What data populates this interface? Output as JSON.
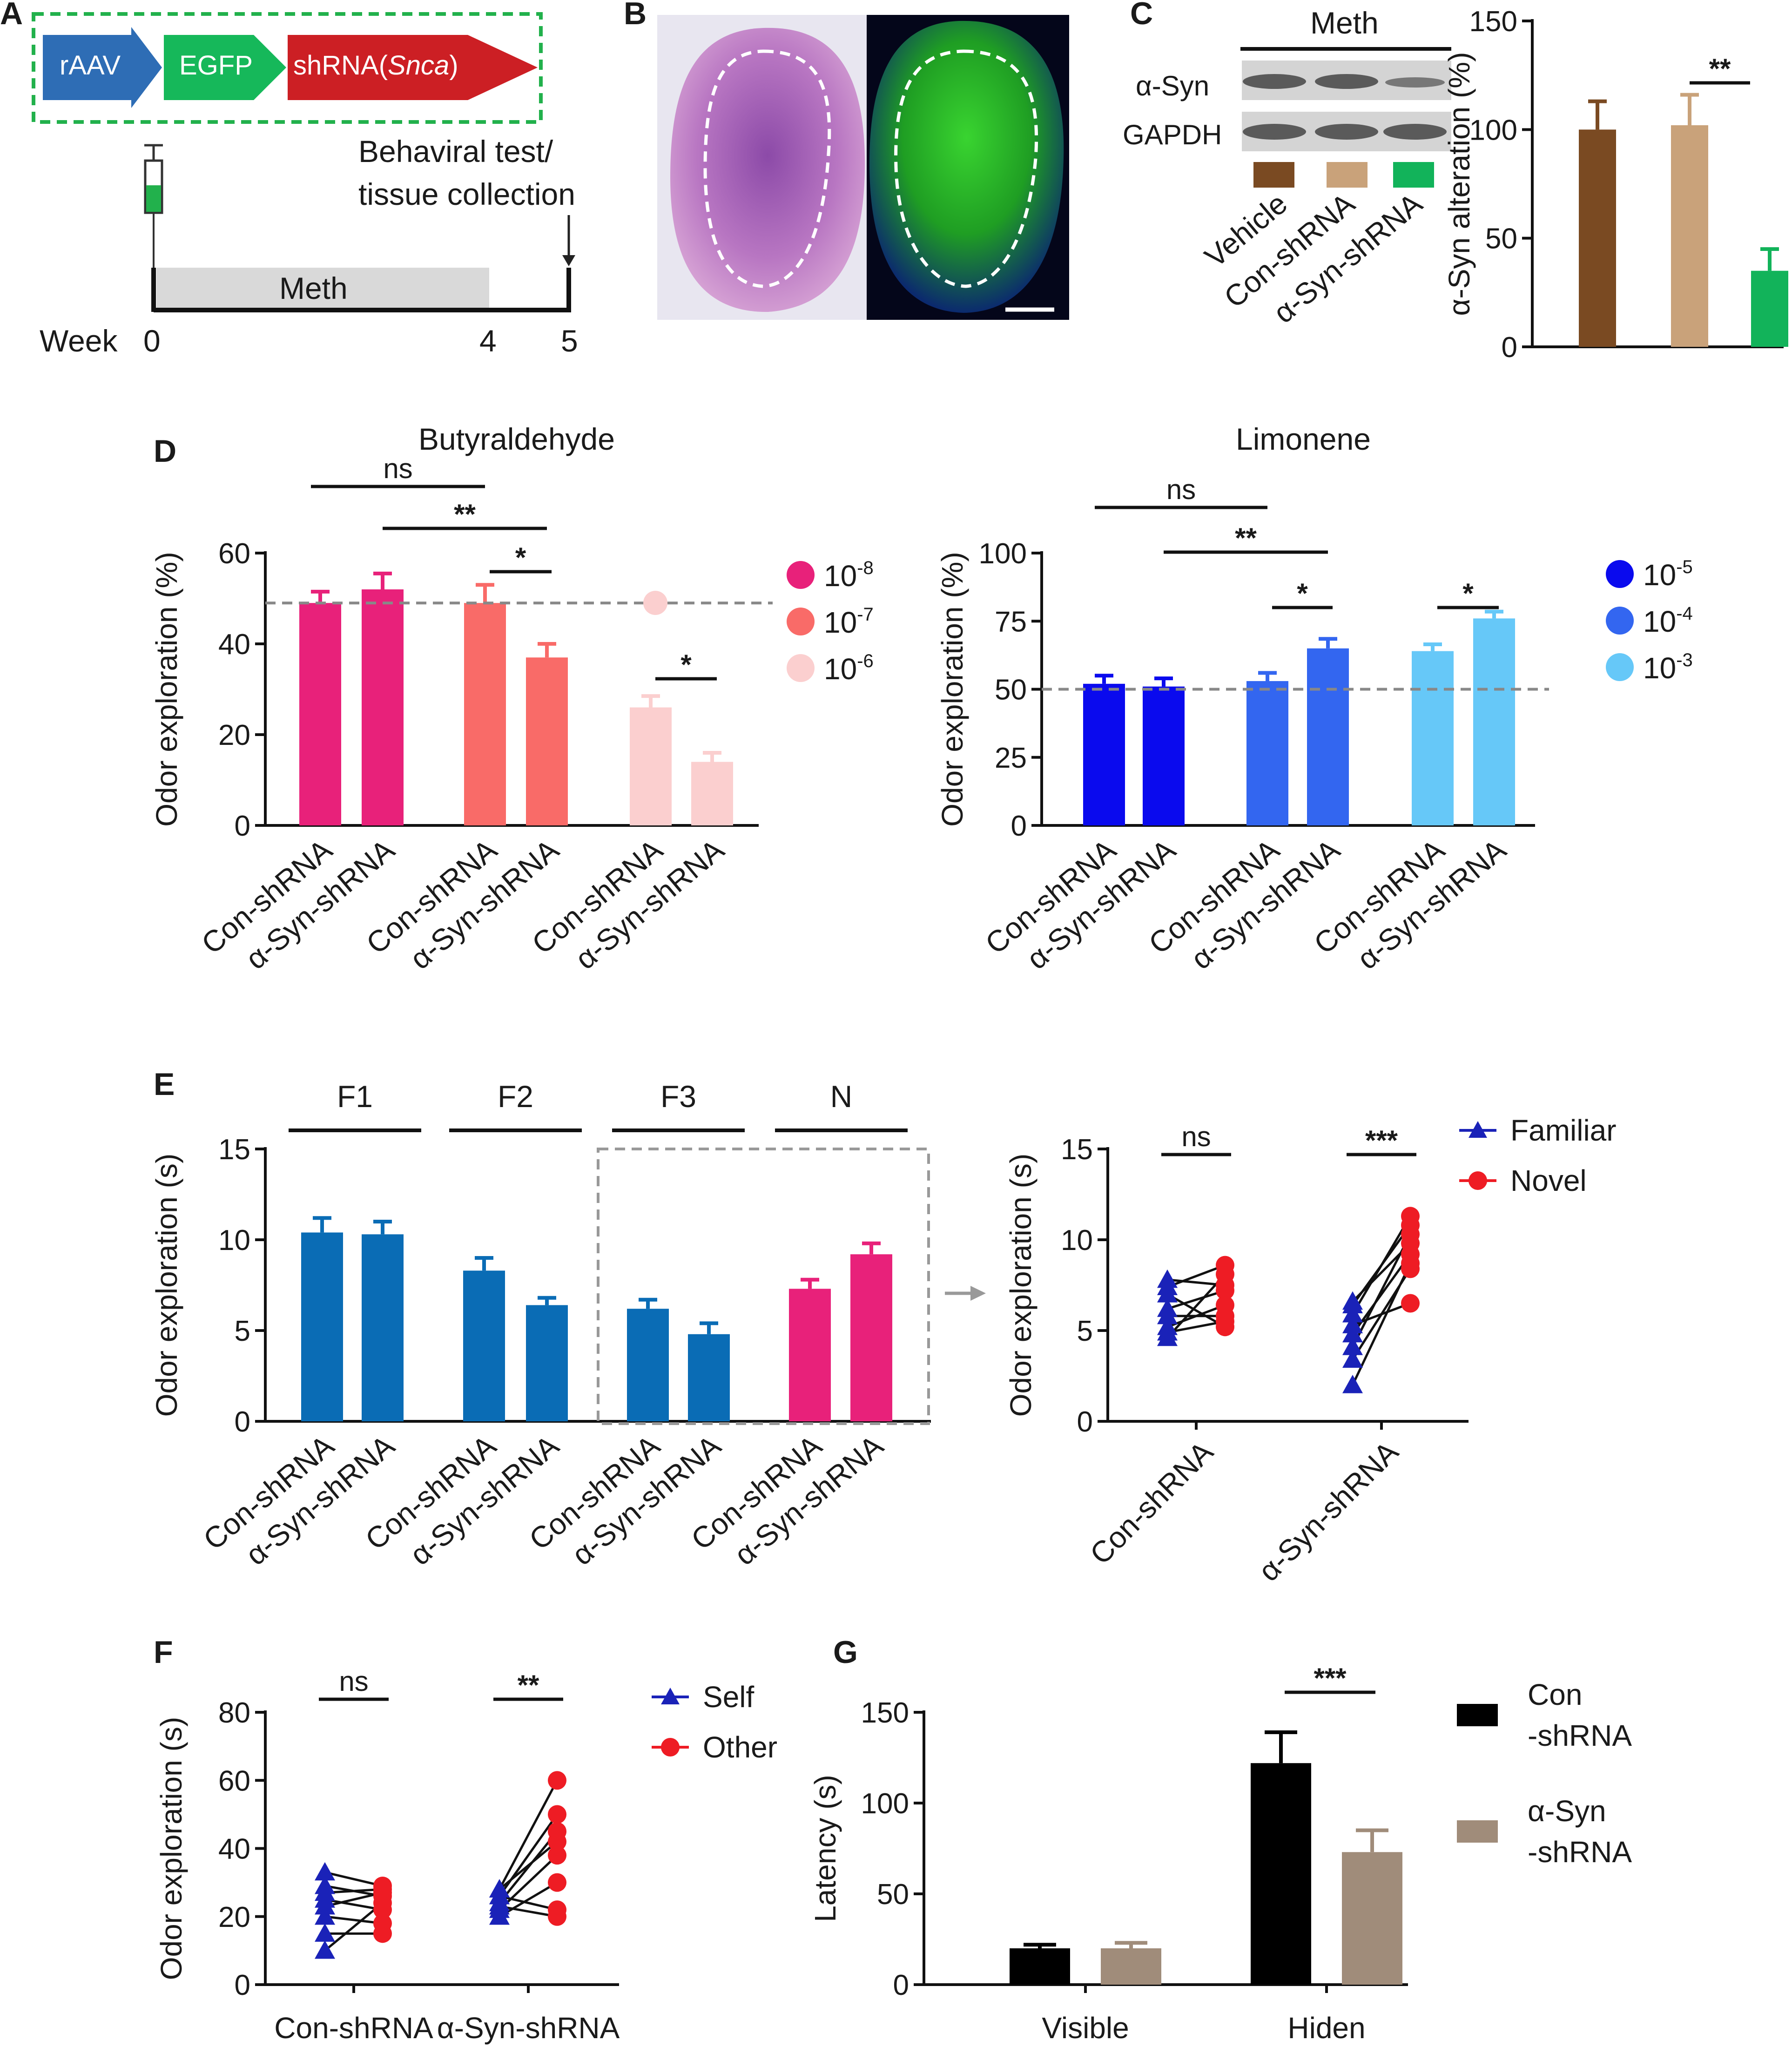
{
  "panel_letters": {
    "A": "A",
    "B": "B",
    "C": "C",
    "D": "D",
    "E": "E",
    "F": "F",
    "G": "G"
  },
  "colors": {
    "butyr_1e8": "#e8217a",
    "butyr_1e7": "#f96b68",
    "butyr_1e6": "#fbcfcf",
    "limo_1e5": "#0a0aee",
    "limo_1e4": "#3366f0",
    "limo_1e3": "#66c8f8",
    "f_bar": "#0a6cb5",
    "n_bar": "#e8217a",
    "familiar": "#1a22b8",
    "novel": "#ee1c24",
    "vehicle": "#7a4a22",
    "con": "#c9a27a",
    "asyn": "#12b35a",
    "g_con": "#000000",
    "g_asyn": "#a08c7a",
    "rAAV": "#2e6db5",
    "EGFP": "#16b85a",
    "shRNA": "#cc1f24",
    "gfp_box": "#22b14c"
  },
  "panel_a": {
    "construct": [
      "rAAV",
      "EGFP",
      "shRNA(",
      "Snca",
      ")"
    ],
    "behavioral_line1": "Behaviral test/",
    "behavioral_line2": "tissue collection",
    "meth": "Meth",
    "week_label": "Week",
    "ticks": [
      "0",
      "4",
      "5"
    ]
  },
  "panel_b": {
    "description": "olfactory bulb sections"
  },
  "panel_c": {
    "meth_label": "Meth",
    "blot_rows": [
      "α-Syn",
      "GAPDH"
    ],
    "lane_labels": [
      "Vehicle",
      "Con-shRNA",
      "α-Syn-shRNA"
    ],
    "chart_data": {
      "type": "bar",
      "categories": [
        "Vehicle",
        "Con-shRNA",
        "α-Syn-shRNA"
      ],
      "values": [
        100,
        102,
        35
      ],
      "errors": [
        13,
        14,
        10
      ],
      "ylabel": "α-Syn alteration (%)",
      "ylim": [
        0,
        150
      ],
      "yticks": [
        "0",
        "50",
        "100",
        "150"
      ],
      "significance": [
        {
          "label": "**",
          "between": [
            1,
            2
          ]
        }
      ]
    }
  },
  "panel_d": {
    "chart_data": [
      {
        "type": "bar",
        "title": "Butyraldehyde",
        "ylabel": "Odor exploration (%)",
        "ylim": [
          0,
          60
        ],
        "yticks": [
          "0",
          "20",
          "40",
          "60"
        ],
        "reference_line": 49,
        "categories": [
          "Con-shRNA",
          "α-Syn-shRNA",
          "Con-shRNA",
          "α-Syn-shRNA",
          "Con-shRNA",
          "α-Syn-shRNA"
        ],
        "values": [
          49,
          52,
          49,
          37,
          26,
          14
        ],
        "errors": [
          2.5,
          3.5,
          4,
          3,
          2.5,
          2
        ],
        "legend": [
          {
            "base": "10",
            "exp": "-8"
          },
          {
            "base": "10",
            "exp": "-7"
          },
          {
            "base": "10",
            "exp": "-6"
          }
        ],
        "significance": [
          {
            "label": "ns",
            "between": [
              0,
              2
            ]
          },
          {
            "label": "**",
            "between": [
              1,
              3
            ]
          },
          {
            "label": "*",
            "between": [
              2,
              3
            ]
          },
          {
            "label": "*",
            "between": [
              4,
              5
            ]
          }
        ]
      },
      {
        "type": "bar",
        "title": "Limonene",
        "ylabel": "Odor exploration (%)",
        "ylim": [
          0,
          100
        ],
        "yticks": [
          "0",
          "25",
          "50",
          "75",
          "100"
        ],
        "reference_line": 50,
        "categories": [
          "Con-shRNA",
          "α-Syn-shRNA",
          "Con-shRNA",
          "α-Syn-shRNA",
          "Con-shRNA",
          "α-Syn-shRNA"
        ],
        "values": [
          52,
          51,
          53,
          65,
          64,
          76
        ],
        "errors": [
          3,
          3,
          3,
          3.5,
          2.5,
          2.5
        ],
        "legend": [
          {
            "base": "10",
            "exp": "-5"
          },
          {
            "base": "10",
            "exp": "-4"
          },
          {
            "base": "10",
            "exp": "-3"
          }
        ],
        "significance": [
          {
            "label": "ns",
            "between": [
              0,
              2
            ]
          },
          {
            "label": "**",
            "between": [
              1,
              3
            ]
          },
          {
            "label": "*",
            "between": [
              2,
              3
            ]
          },
          {
            "label": "*",
            "between": [
              4,
              5
            ]
          }
        ]
      }
    ]
  },
  "panel_e": {
    "group_labels": [
      "F1",
      "F2",
      "F3",
      "N"
    ],
    "chart_data": [
      {
        "type": "bar",
        "ylabel": "Odor exploration (s)",
        "ylim": [
          0,
          15
        ],
        "yticks": [
          "0",
          "5",
          "10",
          "15"
        ],
        "categories": [
          "Con-shRNA",
          "α-Syn-shRNA",
          "Con-shRNA",
          "α-Syn-shRNA",
          "Con-shRNA",
          "α-Syn-shRNA",
          "Con-shRNA",
          "α-Syn-shRNA"
        ],
        "values": [
          10.4,
          10.3,
          8.3,
          6.4,
          6.2,
          4.8,
          7.3,
          9.2
        ],
        "errors": [
          0.8,
          0.7,
          0.7,
          0.4,
          0.5,
          0.6,
          0.5,
          0.6
        ]
      },
      {
        "type": "scatter",
        "ylabel": "Odor exploration (s)",
        "ylim": [
          0,
          15
        ],
        "yticks": [
          "0",
          "5",
          "10",
          "15"
        ],
        "categories": [
          "Con-shRNA",
          "α-Syn-shRNA"
        ],
        "legend": [
          "Familiar",
          "Novel"
        ],
        "series": [
          {
            "name": "Con-shRNA",
            "familiar": [
              7.8,
              7.4,
              6.2,
              5.8,
              5.2,
              4.6,
              7.0,
              4.9
            ],
            "novel": [
              7.5,
              8.6,
              7.2,
              5.8,
              6.4,
              8.1,
              5.2,
              5.5
            ]
          },
          {
            "name": "α-Syn-shRNA",
            "familiar": [
              6.4,
              5.9,
              4.8,
              3.4,
              2.0,
              6.6,
              5.3,
              4.1
            ],
            "novel": [
              10.8,
              11.3,
              9.2,
              8.4,
              8.7,
              9.8,
              6.5,
              10.3
            ]
          }
        ],
        "significance": [
          {
            "label": "ns",
            "group": 0
          },
          {
            "label": "***",
            "group": 1
          }
        ]
      }
    ]
  },
  "panel_f": {
    "chart_data": {
      "type": "scatter",
      "ylabel": "Odor exploration (s)",
      "ylim": [
        0,
        80
      ],
      "yticks": [
        "0",
        "20",
        "40",
        "60",
        "80"
      ],
      "categories": [
        "Con-shRNA",
        "α-Syn-shRNA"
      ],
      "legend": [
        "Self",
        "Other"
      ],
      "series": [
        {
          "name": "Con-shRNA",
          "self": [
            33,
            29,
            25,
            20,
            15,
            10,
            27,
            23
          ],
          "other": [
            29,
            26,
            22,
            18,
            15,
            24,
            28,
            27
          ]
        },
        {
          "name": "α-Syn-shRNA",
          "self": [
            28,
            26,
            24,
            22,
            20,
            28,
            23,
            26
          ],
          "other": [
            60,
            50,
            45,
            38,
            30,
            42,
            20,
            22
          ]
        }
      ],
      "significance": [
        {
          "label": "ns",
          "group": 0
        },
        {
          "label": "**",
          "group": 1
        }
      ]
    }
  },
  "panel_g": {
    "chart_data": {
      "type": "bar",
      "ylabel": "Latency (s)",
      "ylim": [
        0,
        150
      ],
      "yticks": [
        "0",
        "50",
        "100",
        "150"
      ],
      "categories": [
        "Visible",
        "Hiden"
      ],
      "series": [
        {
          "name": "Con -shRNA",
          "legend_lines": [
            "Con",
            "-shRNA"
          ],
          "values": [
            20,
            122
          ],
          "errors": [
            2,
            17
          ]
        },
        {
          "name": "α-Syn -shRNA",
          "legend_lines": [
            "α-Syn",
            "-shRNA"
          ],
          "values": [
            20,
            73
          ],
          "errors": [
            3,
            12
          ]
        }
      ],
      "significance": [
        {
          "label": "***",
          "group": 1
        }
      ]
    }
  }
}
